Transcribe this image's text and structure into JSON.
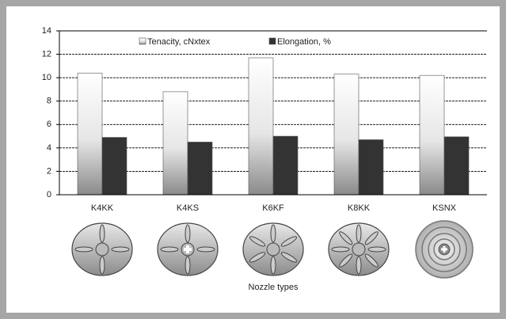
{
  "chart_data": {
    "type": "bar",
    "categories": [
      "K4KK",
      "K4KS",
      "K6KF",
      "K8KK",
      "KSNX"
    ],
    "series": [
      {
        "name": "Tenacity, cNxtex",
        "color": "#e0e0e0",
        "values": [
          10.4,
          8.8,
          11.7,
          10.3,
          10.2
        ]
      },
      {
        "name": "Elongation, %",
        "color": "#333333",
        "values": [
          4.9,
          4.5,
          5.0,
          4.7,
          4.95
        ]
      }
    ],
    "x_label": "Nozzle types",
    "ylim": [
      0,
      14
    ],
    "yticks": [
      0,
      2,
      4,
      6,
      8,
      10,
      12,
      14
    ],
    "grid": true,
    "legend": "top"
  }
}
